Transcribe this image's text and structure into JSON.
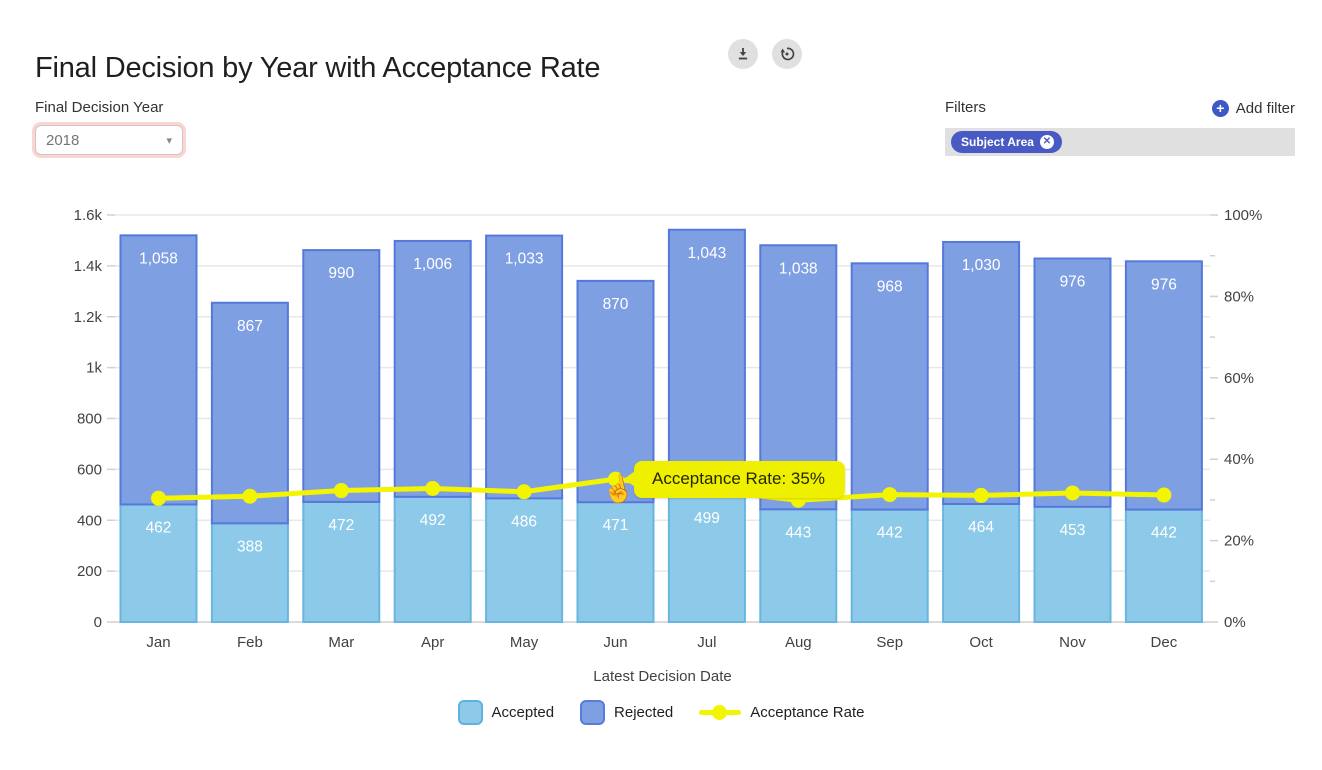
{
  "header": {
    "title": "Final Decision by Year with Acceptance Rate"
  },
  "controls": {
    "year_label": "Final Decision Year",
    "year_value": "2018"
  },
  "filters": {
    "label": "Filters",
    "add_label": "Add filter",
    "chips": [
      {
        "label": "Subject Area"
      }
    ]
  },
  "tooltip": {
    "text": "Acceptance Rate: 35%"
  },
  "chart_data": {
    "type": "bar",
    "stacked": true,
    "grid": true,
    "categories": [
      "Jan",
      "Feb",
      "Mar",
      "Apr",
      "May",
      "Jun",
      "Jul",
      "Aug",
      "Sep",
      "Oct",
      "Nov",
      "Dec"
    ],
    "series": [
      {
        "name": "Accepted",
        "values": [
          462,
          388,
          472,
          492,
          486,
          471,
          499,
          443,
          442,
          464,
          453,
          442
        ],
        "color": "#8dcae9",
        "border": "#68b6e0"
      },
      {
        "name": "Rejected",
        "values": [
          1058,
          867,
          990,
          1006,
          1033,
          870,
          1043,
          1038,
          968,
          1030,
          976,
          976
        ],
        "color": "#7f9fe3",
        "border": "#5578db"
      }
    ],
    "line_series": {
      "name": "Acceptance Rate",
      "values": [
        30.4,
        30.9,
        32.3,
        32.8,
        32.0,
        35.1,
        32.4,
        29.9,
        31.3,
        31.1,
        31.7,
        31.2
      ],
      "unit": "%",
      "color": "#f3f500"
    },
    "left_axis": {
      "min": 0,
      "max": 1600,
      "tick_values": [
        0,
        200,
        400,
        600,
        800,
        1000,
        1200,
        1400,
        1600
      ],
      "tick_labels": [
        "0",
        "200",
        "400",
        "600",
        "800",
        "1k",
        "1.2k",
        "1.4k",
        "1.6k"
      ]
    },
    "right_axis": {
      "min": 0,
      "max": 100,
      "tick_values": [
        0,
        20,
        40,
        60,
        80,
        100
      ],
      "tick_labels": [
        "0%",
        "20%",
        "40%",
        "60%",
        "80%",
        "100%"
      ]
    },
    "xlabel": "Latest Decision Date",
    "legend": [
      "Accepted",
      "Rejected",
      "Acceptance Rate"
    ],
    "legend_position": "bottom",
    "bar_label_color": "#ffffff",
    "grid_color": "#e8e8e8"
  }
}
